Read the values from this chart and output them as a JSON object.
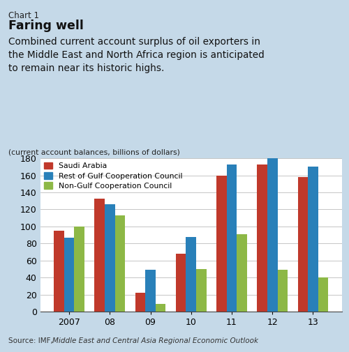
{
  "chart_label": "Chart 1",
  "title": "Faring well",
  "subtitle": "Combined current account surplus of oil exporters in\nthe Middle East and North Africa region is anticipated\nto remain near its historic highs.",
  "ylabel": "(current account balances, billions of dollars)",
  "source_normal": "Source: IMF, ",
  "source_italic": "Middle East and Central Asia Regional Economic Outlook",
  "source_end": ".",
  "years": [
    "2007",
    "08",
    "09",
    "10",
    "11",
    "12",
    "13"
  ],
  "saudi_arabia": [
    95,
    133,
    22,
    68,
    160,
    173,
    158
  ],
  "rest_gcc": [
    87,
    126,
    49,
    88,
    173,
    180,
    170
  ],
  "non_gcc": [
    100,
    113,
    9,
    50,
    91,
    49,
    40
  ],
  "bar_colors": [
    "#c0392b",
    "#2980b9",
    "#8db846"
  ],
  "legend_labels": [
    "Saudi Arabia",
    "Rest of Gulf Cooperation Council",
    "Non-Gulf Cooperation Council"
  ],
  "ylim": [
    0,
    180
  ],
  "yticks": [
    0,
    20,
    40,
    60,
    80,
    100,
    120,
    140,
    160,
    180
  ],
  "background_color": "#c5d9e8",
  "plot_bg_color": "#ffffff",
  "bar_width": 0.25
}
